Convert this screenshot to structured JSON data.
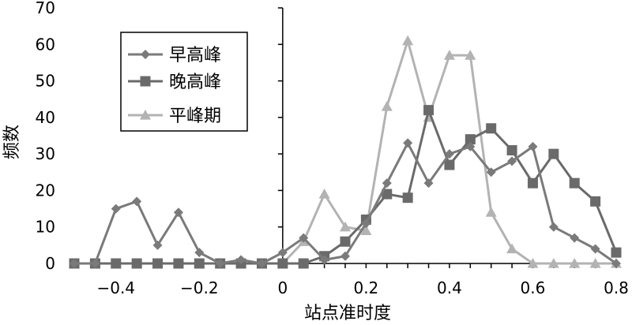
{
  "chart_data": {
    "type": "line",
    "title": "",
    "xlabel": "站点准时度",
    "ylabel": "频数",
    "xlim": [
      -0.5,
      0.8
    ],
    "ylim": [
      0,
      70
    ],
    "x_ticks": [
      -0.4,
      -0.2,
      0,
      0.2,
      0.4,
      0.6,
      0.8
    ],
    "x_tick_labels": [
      "−0.4",
      "−0.2",
      "0",
      "0.2",
      "0.4",
      "0.6",
      "0.8"
    ],
    "y_ticks": [
      0,
      10,
      20,
      30,
      40,
      50,
      60,
      70
    ],
    "y_tick_labels": [
      "0",
      "10",
      "20",
      "30",
      "40",
      "50",
      "60",
      "70"
    ],
    "grid": false,
    "legend_position": "top-left",
    "x": [
      -0.5,
      -0.45,
      -0.4,
      -0.35,
      -0.3,
      -0.25,
      -0.2,
      -0.15,
      -0.1,
      -0.05,
      0,
      0.05,
      0.1,
      0.15,
      0.2,
      0.25,
      0.3,
      0.35,
      0.4,
      0.45,
      0.5,
      0.55,
      0.6,
      0.65,
      0.7,
      0.75,
      0.8
    ],
    "series": [
      {
        "name": "早高峰",
        "marker": "diamond",
        "color": "#7a7a7a",
        "values": [
          0,
          0,
          15,
          17,
          5,
          14,
          3,
          0,
          1,
          0,
          3,
          7,
          1,
          2,
          11,
          22,
          33,
          22,
          30,
          32,
          25,
          28,
          32,
          10,
          7,
          4,
          0
        ]
      },
      {
        "name": "晚高峰",
        "marker": "square",
        "color": "#6a6a6a",
        "values": [
          0,
          0,
          0,
          0,
          0,
          0,
          0,
          0,
          0,
          0,
          0,
          0,
          2,
          6,
          12,
          19,
          18,
          42,
          27,
          34,
          37,
          31,
          22,
          30,
          22,
          17,
          3
        ]
      },
      {
        "name": "平峰期",
        "marker": "triangle",
        "color": "#b3b3b3",
        "values": [
          0,
          0,
          0,
          0,
          0,
          0,
          0,
          0,
          0,
          0,
          0,
          6,
          19,
          10,
          9,
          43,
          61,
          40,
          57,
          57,
          14,
          4,
          0,
          0,
          0,
          0,
          0
        ]
      }
    ]
  }
}
